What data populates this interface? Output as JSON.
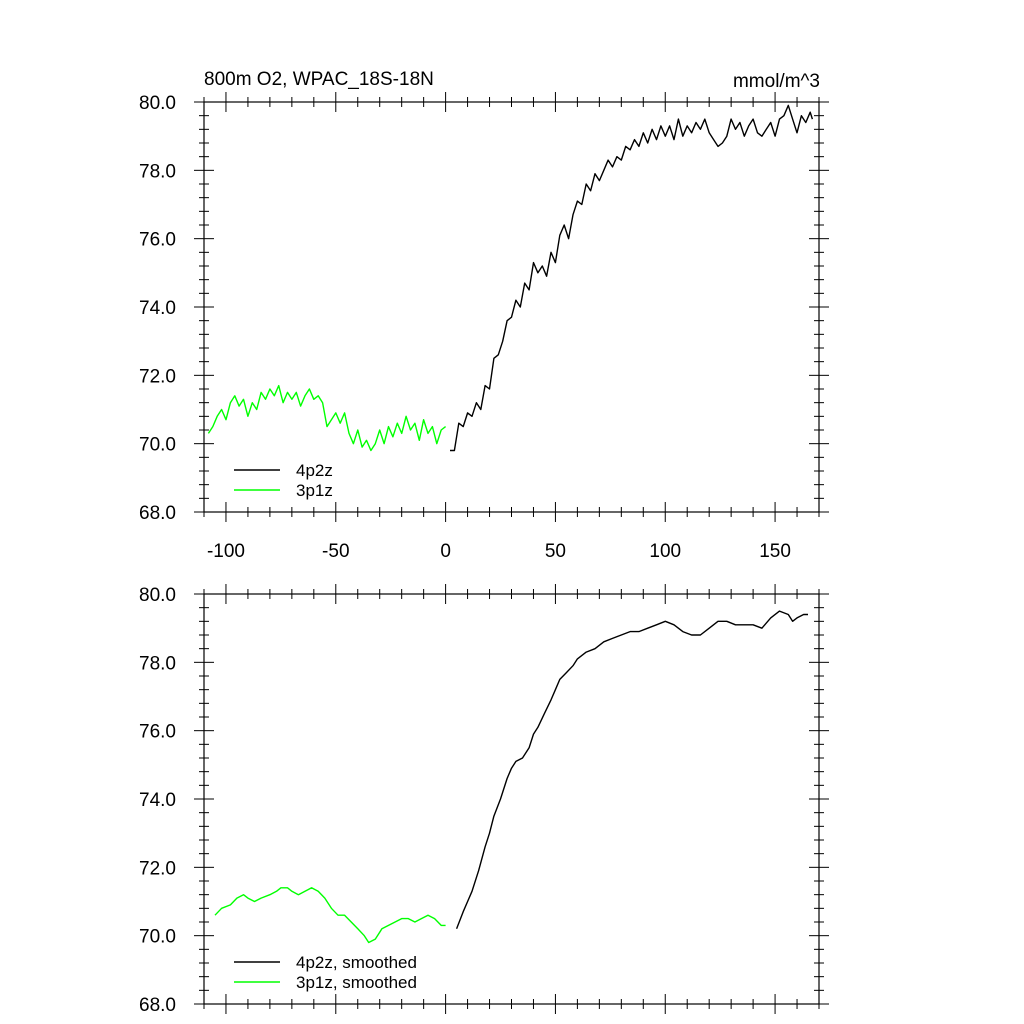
{
  "chart_data": [
    {
      "type": "line",
      "title": "800m O2, WPAC_18S-18N",
      "units": "mmol/m^3",
      "xlim": [
        -110,
        170
      ],
      "ylim": [
        68,
        80
      ],
      "x_ticks": [
        -100,
        -50,
        0,
        50,
        100,
        150
      ],
      "x_tick_labels": [
        "-100",
        "-50",
        "0",
        "50",
        "100",
        "150"
      ],
      "y_ticks": [
        68,
        70,
        72,
        74,
        76,
        78,
        80
      ],
      "y_tick_labels": [
        "68.0",
        "70.0",
        "72.0",
        "74.0",
        "76.0",
        "78.0",
        "80.0"
      ],
      "legend_position": "bottom-left",
      "series": [
        {
          "name": "4p2z",
          "color": "#000000",
          "points": [
            [
              2,
              69.8
            ],
            [
              4,
              69.8
            ],
            [
              6,
              70.6
            ],
            [
              8,
              70.5
            ],
            [
              10,
              70.9
            ],
            [
              12,
              70.8
            ],
            [
              14,
              71.2
            ],
            [
              16,
              71.0
            ],
            [
              18,
              71.7
            ],
            [
              20,
              71.6
            ],
            [
              22,
              72.5
            ],
            [
              24,
              72.6
            ],
            [
              26,
              73.0
            ],
            [
              28,
              73.6
            ],
            [
              30,
              73.7
            ],
            [
              32,
              74.2
            ],
            [
              34,
              74.0
            ],
            [
              36,
              74.7
            ],
            [
              38,
              74.5
            ],
            [
              40,
              75.3
            ],
            [
              42,
              75.0
            ],
            [
              44,
              75.2
            ],
            [
              46,
              74.9
            ],
            [
              48,
              75.6
            ],
            [
              50,
              75.3
            ],
            [
              52,
              76.1
            ],
            [
              54,
              76.4
            ],
            [
              56,
              76.0
            ],
            [
              58,
              76.7
            ],
            [
              60,
              77.1
            ],
            [
              62,
              77.0
            ],
            [
              64,
              77.6
            ],
            [
              66,
              77.4
            ],
            [
              68,
              77.9
            ],
            [
              70,
              77.7
            ],
            [
              72,
              78.0
            ],
            [
              74,
              78.3
            ],
            [
              76,
              78.1
            ],
            [
              78,
              78.4
            ],
            [
              80,
              78.3
            ],
            [
              82,
              78.7
            ],
            [
              84,
              78.6
            ],
            [
              86,
              78.9
            ],
            [
              88,
              78.7
            ],
            [
              90,
              79.1
            ],
            [
              92,
              78.8
            ],
            [
              94,
              79.2
            ],
            [
              96,
              78.9
            ],
            [
              98,
              79.3
            ],
            [
              100,
              79.0
            ],
            [
              102,
              79.3
            ],
            [
              104,
              78.9
            ],
            [
              106,
              79.5
            ],
            [
              108,
              79.0
            ],
            [
              110,
              79.3
            ],
            [
              112,
              79.1
            ],
            [
              114,
              79.4
            ],
            [
              116,
              79.2
            ],
            [
              118,
              79.5
            ],
            [
              120,
              79.1
            ],
            [
              122,
              78.9
            ],
            [
              124,
              78.7
            ],
            [
              126,
              78.8
            ],
            [
              128,
              79.0
            ],
            [
              130,
              79.5
            ],
            [
              132,
              79.2
            ],
            [
              134,
              79.4
            ],
            [
              136,
              79.0
            ],
            [
              138,
              79.3
            ],
            [
              140,
              79.5
            ],
            [
              142,
              79.1
            ],
            [
              144,
              79.0
            ],
            [
              146,
              79.2
            ],
            [
              148,
              79.4
            ],
            [
              150,
              79.0
            ],
            [
              152,
              79.5
            ],
            [
              154,
              79.6
            ],
            [
              156,
              79.9
            ],
            [
              158,
              79.5
            ],
            [
              160,
              79.1
            ],
            [
              162,
              79.6
            ],
            [
              164,
              79.4
            ],
            [
              166,
              79.7
            ],
            [
              167,
              79.5
            ]
          ]
        },
        {
          "name": "3p1z",
          "color": "#00ff00",
          "points": [
            [
              -108,
              70.3
            ],
            [
              -106,
              70.5
            ],
            [
              -104,
              70.8
            ],
            [
              -102,
              71.0
            ],
            [
              -100,
              70.7
            ],
            [
              -98,
              71.2
            ],
            [
              -96,
              71.4
            ],
            [
              -94,
              71.1
            ],
            [
              -92,
              71.3
            ],
            [
              -90,
              70.8
            ],
            [
              -88,
              71.2
            ],
            [
              -86,
              71.0
            ],
            [
              -84,
              71.5
            ],
            [
              -82,
              71.3
            ],
            [
              -80,
              71.6
            ],
            [
              -78,
              71.4
            ],
            [
              -76,
              71.7
            ],
            [
              -74,
              71.2
            ],
            [
              -72,
              71.5
            ],
            [
              -70,
              71.3
            ],
            [
              -68,
              71.5
            ],
            [
              -66,
              71.1
            ],
            [
              -64,
              71.4
            ],
            [
              -62,
              71.6
            ],
            [
              -60,
              71.3
            ],
            [
              -58,
              71.4
            ],
            [
              -56,
              71.2
            ],
            [
              -54,
              70.5
            ],
            [
              -52,
              70.7
            ],
            [
              -50,
              70.9
            ],
            [
              -48,
              70.6
            ],
            [
              -46,
              70.9
            ],
            [
              -44,
              70.3
            ],
            [
              -42,
              70.0
            ],
            [
              -40,
              70.4
            ],
            [
              -38,
              69.9
            ],
            [
              -36,
              70.1
            ],
            [
              -34,
              69.8
            ],
            [
              -32,
              70.0
            ],
            [
              -30,
              70.4
            ],
            [
              -28,
              70.0
            ],
            [
              -26,
              70.5
            ],
            [
              -24,
              70.2
            ],
            [
              -22,
              70.6
            ],
            [
              -20,
              70.3
            ],
            [
              -18,
              70.8
            ],
            [
              -16,
              70.4
            ],
            [
              -14,
              70.6
            ],
            [
              -12,
              70.1
            ],
            [
              -10,
              70.7
            ],
            [
              -8,
              70.3
            ],
            [
              -6,
              70.5
            ],
            [
              -4,
              70.0
            ],
            [
              -2,
              70.4
            ],
            [
              0,
              70.5
            ]
          ]
        }
      ]
    },
    {
      "type": "line",
      "xlim": [
        -110,
        170
      ],
      "ylim": [
        68,
        80
      ],
      "x_ticks": [
        -100,
        -50,
        0,
        50,
        100,
        150
      ],
      "y_ticks": [
        68,
        70,
        72,
        74,
        76,
        78,
        80
      ],
      "y_tick_labels": [
        "68.0",
        "70.0",
        "72.0",
        "74.0",
        "76.0",
        "78.0",
        "80.0"
      ],
      "legend_position": "bottom-left",
      "series": [
        {
          "name": "4p2z, smoothed",
          "color": "#000000",
          "points": [
            [
              5,
              70.2
            ],
            [
              8,
              70.7
            ],
            [
              10,
              71.0
            ],
            [
              12,
              71.3
            ],
            [
              15,
              71.9
            ],
            [
              18,
              72.6
            ],
            [
              20,
              73.0
            ],
            [
              22,
              73.5
            ],
            [
              25,
              74.0
            ],
            [
              28,
              74.6
            ],
            [
              30,
              74.9
            ],
            [
              32,
              75.1
            ],
            [
              35,
              75.2
            ],
            [
              38,
              75.5
            ],
            [
              40,
              75.9
            ],
            [
              42,
              76.1
            ],
            [
              45,
              76.5
            ],
            [
              48,
              76.9
            ],
            [
              50,
              77.2
            ],
            [
              52,
              77.5
            ],
            [
              55,
              77.7
            ],
            [
              58,
              77.9
            ],
            [
              60,
              78.1
            ],
            [
              64,
              78.3
            ],
            [
              68,
              78.4
            ],
            [
              72,
              78.6
            ],
            [
              76,
              78.7
            ],
            [
              80,
              78.8
            ],
            [
              84,
              78.9
            ],
            [
              88,
              78.9
            ],
            [
              92,
              79.0
            ],
            [
              96,
              79.1
            ],
            [
              100,
              79.2
            ],
            [
              104,
              79.1
            ],
            [
              106,
              79.0
            ],
            [
              108,
              78.9
            ],
            [
              112,
              78.8
            ],
            [
              116,
              78.8
            ],
            [
              120,
              79.0
            ],
            [
              124,
              79.2
            ],
            [
              128,
              79.2
            ],
            [
              132,
              79.1
            ],
            [
              136,
              79.1
            ],
            [
              140,
              79.1
            ],
            [
              144,
              79.0
            ],
            [
              148,
              79.3
            ],
            [
              152,
              79.5
            ],
            [
              156,
              79.4
            ],
            [
              158,
              79.2
            ],
            [
              160,
              79.3
            ],
            [
              163,
              79.4
            ],
            [
              165,
              79.4
            ]
          ]
        },
        {
          "name": "3p1z, smoothed",
          "color": "#00ff00",
          "points": [
            [
              -105,
              70.6
            ],
            [
              -102,
              70.8
            ],
            [
              -98,
              70.9
            ],
            [
              -95,
              71.1
            ],
            [
              -92,
              71.2
            ],
            [
              -90,
              71.1
            ],
            [
              -87,
              71.0
            ],
            [
              -84,
              71.1
            ],
            [
              -80,
              71.2
            ],
            [
              -77,
              71.3
            ],
            [
              -75,
              71.4
            ],
            [
              -72,
              71.4
            ],
            [
              -70,
              71.3
            ],
            [
              -67,
              71.2
            ],
            [
              -64,
              71.3
            ],
            [
              -61,
              71.4
            ],
            [
              -58,
              71.3
            ],
            [
              -55,
              71.1
            ],
            [
              -52,
              70.8
            ],
            [
              -49,
              70.6
            ],
            [
              -46,
              70.6
            ],
            [
              -43,
              70.4
            ],
            [
              -40,
              70.2
            ],
            [
              -37,
              70.0
            ],
            [
              -35,
              69.8
            ],
            [
              -32,
              69.9
            ],
            [
              -29,
              70.2
            ],
            [
              -26,
              70.3
            ],
            [
              -23,
              70.4
            ],
            [
              -20,
              70.5
            ],
            [
              -17,
              70.5
            ],
            [
              -14,
              70.4
            ],
            [
              -11,
              70.5
            ],
            [
              -8,
              70.6
            ],
            [
              -5,
              70.5
            ],
            [
              -2,
              70.3
            ],
            [
              0,
              70.3
            ]
          ]
        }
      ]
    }
  ]
}
